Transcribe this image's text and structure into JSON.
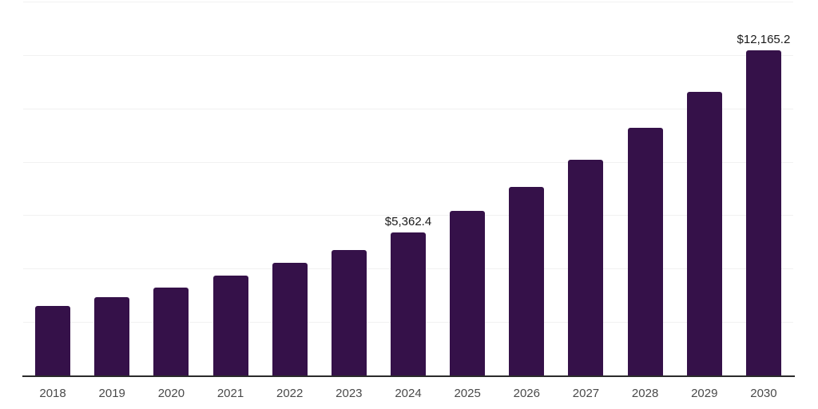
{
  "chart_data": {
    "type": "bar",
    "title": "",
    "xlabel": "",
    "ylabel": "",
    "categories": [
      "2018",
      "2019",
      "2020",
      "2021",
      "2022",
      "2023",
      "2024",
      "2025",
      "2026",
      "2027",
      "2028",
      "2029",
      "2030"
    ],
    "values": [
      2600,
      2930,
      3290,
      3730,
      4210,
      4700,
      5362.4,
      6160,
      7060,
      8070,
      9270,
      10610,
      12165.2
    ],
    "value_labels": {
      "2024": "$5,362.4",
      "2030": "$12,165.2"
    },
    "ylim": [
      0,
      14000
    ],
    "gridline_step": 2000,
    "grid": true,
    "legend": false,
    "colors": {
      "bar": "#351149",
      "gridline": "#f1f1f1",
      "axis_line": "#2b2b2b",
      "value_label_text": "#1a1a1a",
      "tick_label_text": "#4a4a4a",
      "background": "#ffffff"
    }
  }
}
